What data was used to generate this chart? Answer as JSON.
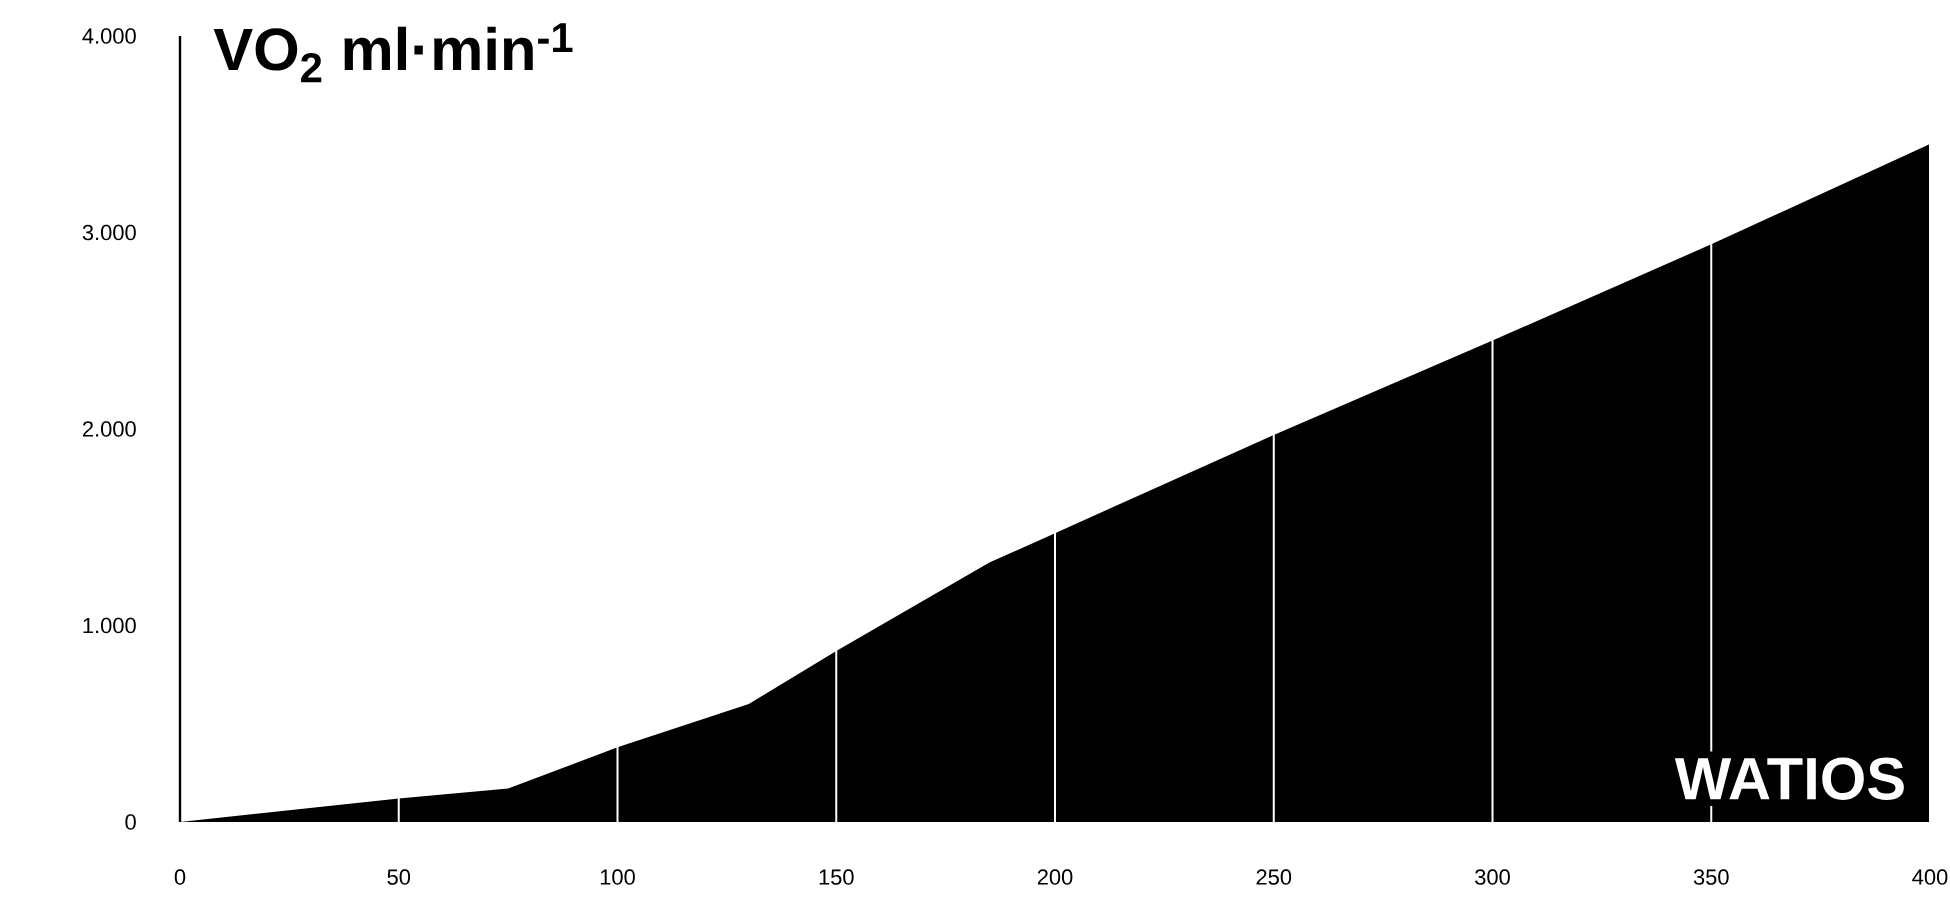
{
  "chart_data": {
    "type": "area",
    "title": "VO$_{2}$ ml·min$^{-1}$",
    "xlabel": "WATIOS",
    "x": [
      0,
      50,
      75,
      100,
      130,
      150,
      185,
      200,
      250,
      300,
      350,
      400
    ],
    "series": [
      {
        "color": "#000000",
        "values": [
          0,
          120,
          170,
          380,
          600,
          870,
          1320,
          1470,
          1970,
          2450,
          2940,
          3450
        ]
      }
    ],
    "xlim": [
      0,
      400
    ],
    "ylim": [
      0,
      4000
    ],
    "xticks": [
      0,
      50,
      100,
      150,
      200,
      250,
      300,
      350,
      400
    ],
    "yticks": [
      0,
      {
        "value": 1000,
        "label": "1.000"
      },
      {
        "value": 2000,
        "label": "2.000"
      },
      {
        "value": 3000,
        "label": "3.000"
      },
      {
        "value": 4000,
        "label": "4.000"
      }
    ],
    "grid": "x"
  }
}
